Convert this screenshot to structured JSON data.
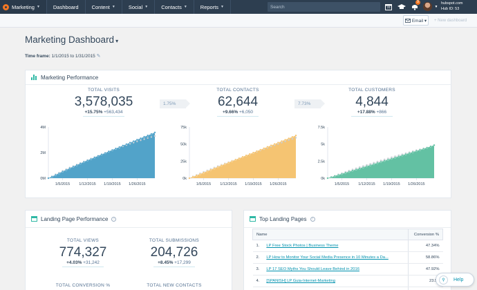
{
  "nav": {
    "brand": "Marketing",
    "items": [
      {
        "label": "Dashboard",
        "caret": ""
      },
      {
        "label": "Content",
        "caret": "▼"
      },
      {
        "label": "Social",
        "caret": "▼"
      },
      {
        "label": "Contacts",
        "caret": "▼"
      },
      {
        "label": "Reports",
        "caret": "▼"
      }
    ],
    "search_placeholder": "Search",
    "calendar_day": "21",
    "notification_count": "9",
    "account_domain": "hubspot.com",
    "hub_id": "Hub ID: 53"
  },
  "subbar": {
    "email_button": "Email ▾",
    "new_dashboard": "+ New dashboard"
  },
  "page": {
    "title": "Marketing Dashboard",
    "title_caret": "▾",
    "timeframe_label": "Time frame:",
    "timeframe_value": "1/1/2015 to 1/31/2015"
  },
  "marketing_performance": {
    "title": "Marketing Performance",
    "metrics": [
      {
        "label": "TOTAL VISITS",
        "value": "3,578,035",
        "pct": "+15.75%",
        "delta": "+563,434"
      },
      {
        "label": "TOTAL CONTACTS",
        "value": "62,644",
        "pct": "+9.66%",
        "delta": "+6,050"
      },
      {
        "label": "TOTAL CUSTOMERS",
        "value": "4,844",
        "pct": "+17.88%",
        "delta": "+866"
      }
    ],
    "rates": [
      "1.75%",
      "7.73%"
    ]
  },
  "landing_page_performance": {
    "title": "Landing Page Performance",
    "metrics": [
      {
        "label": "TOTAL VIEWS",
        "value": "774,327",
        "pct": "+4.03%",
        "delta": "+31,242"
      },
      {
        "label": "TOTAL SUBMISSIONS",
        "value": "204,726",
        "pct": "+8.45%",
        "delta": "+17,299"
      }
    ],
    "more_labels": [
      "TOTAL CONVERSION %",
      "TOTAL NEW CONTACTS"
    ]
  },
  "top_landing_pages": {
    "title": "Top Landing Pages",
    "columns": [
      "Name",
      "Conversion %"
    ],
    "rows": [
      {
        "num": "1.",
        "name": "LP Free Stock Photos | Business Theme",
        "conv": "47.34%"
      },
      {
        "num": "2.",
        "name": "LP How to Monitor Your Social Media Presence in 10 Minutes a Da...",
        "conv": "58.86%"
      },
      {
        "num": "3.",
        "name": "LP 17 SEO Myths You Should Leave Behind in 2016",
        "conv": "47.92%"
      },
      {
        "num": "4.",
        "name": "[SPANISH] LP Guia-Internet-Marketing",
        "conv": "23.57"
      },
      {
        "num": "5.",
        "name": "",
        "conv": ""
      }
    ]
  },
  "help": {
    "label": "Help"
  },
  "chart_data": [
    {
      "type": "area",
      "title": "TOTAL VISITS",
      "x_ticks": [
        "1/5/2015",
        "1/12/2015",
        "1/19/2015",
        "1/26/2015"
      ],
      "y_ticks": [
        "0M",
        "2M",
        "4M"
      ],
      "ylim": [
        0,
        4000000
      ],
      "color": "#4a9fc7",
      "series": [
        {
          "name": "",
          "values": [
            0,
            120000,
            250000,
            380000,
            520000,
            640000,
            780000,
            900000,
            1020000,
            1150000,
            1270000,
            1390000,
            1500000,
            1620000,
            1740000,
            1860000,
            1970000,
            2090000,
            2200000,
            2320000,
            2430000,
            2550000,
            2660000,
            2780000,
            2890000,
            3010000,
            3120000,
            3240000,
            3340000,
            3460000,
            3578035
          ]
        },
        {
          "name": "",
          "values": [
            0,
            150000,
            300000,
            430000,
            580000,
            700000,
            830000,
            950000,
            1070000,
            1190000,
            1310000,
            1420000,
            1540000,
            1650000,
            1760000,
            1870000,
            1980000,
            2090000,
            2190000,
            2290000,
            2390000,
            2490000,
            2590000,
            2690000,
            2780000,
            2870000,
            2960000,
            3050000,
            3140000,
            3220000,
            3300000
          ]
        }
      ]
    },
    {
      "type": "area",
      "title": "TOTAL CONTACTS",
      "x_ticks": [
        "1/5/2015",
        "1/12/2015",
        "1/19/2015",
        "1/26/2015"
      ],
      "y_ticks": [
        "0k",
        "25k",
        "50k",
        "75k"
      ],
      "ylim": [
        0,
        75000
      ],
      "color": "#f5c26b",
      "series": [
        {
          "name": "",
          "values": [
            0,
            1900,
            3900,
            5900,
            8000,
            10100,
            12200,
            14300,
            16400,
            18600,
            20700,
            22800,
            24900,
            27000,
            29100,
            31200,
            33300,
            35400,
            37500,
            39600,
            41700,
            43800,
            45900,
            48000,
            50100,
            52200,
            54300,
            56400,
            58400,
            60500,
            62644
          ]
        },
        {
          "name": "",
          "values": [
            0,
            2500,
            4800,
            7000,
            9200,
            11400,
            13500,
            15500,
            17600,
            19600,
            21600,
            23500,
            25500,
            27400,
            29300,
            31200,
            33100,
            35000,
            36900,
            38800,
            40700,
            42600,
            44500,
            46400,
            48300,
            50200,
            52100,
            54000,
            55800,
            57600,
            59300
          ]
        }
      ]
    },
    {
      "type": "area",
      "title": "TOTAL CUSTOMERS",
      "x_ticks": [
        "1/5/2015",
        "1/12/2015",
        "1/19/2015",
        "1/26/2015"
      ],
      "y_ticks": [
        "0k",
        "2.5k",
        "5k",
        "7.5k"
      ],
      "ylim": [
        0,
        7500
      ],
      "color": "#5cbf9f",
      "series": [
        {
          "name": "",
          "values": [
            0,
            150,
            310,
            470,
            630,
            790,
            950,
            1110,
            1270,
            1430,
            1590,
            1750,
            1910,
            2070,
            2230,
            2390,
            2550,
            2710,
            2870,
            3030,
            3190,
            3350,
            3510,
            3670,
            3830,
            3990,
            4150,
            4310,
            4470,
            4650,
            4844
          ]
        },
        {
          "name": "",
          "values": [
            0,
            190,
            380,
            560,
            740,
            920,
            1100,
            1270,
            1440,
            1610,
            1780,
            1940,
            2100,
            2260,
            2420,
            2580,
            2740,
            2900,
            3060,
            3210,
            3360,
            3510,
            3660,
            3810,
            3960,
            4100,
            4240,
            4380,
            4520,
            4660,
            4800
          ]
        }
      ]
    }
  ]
}
